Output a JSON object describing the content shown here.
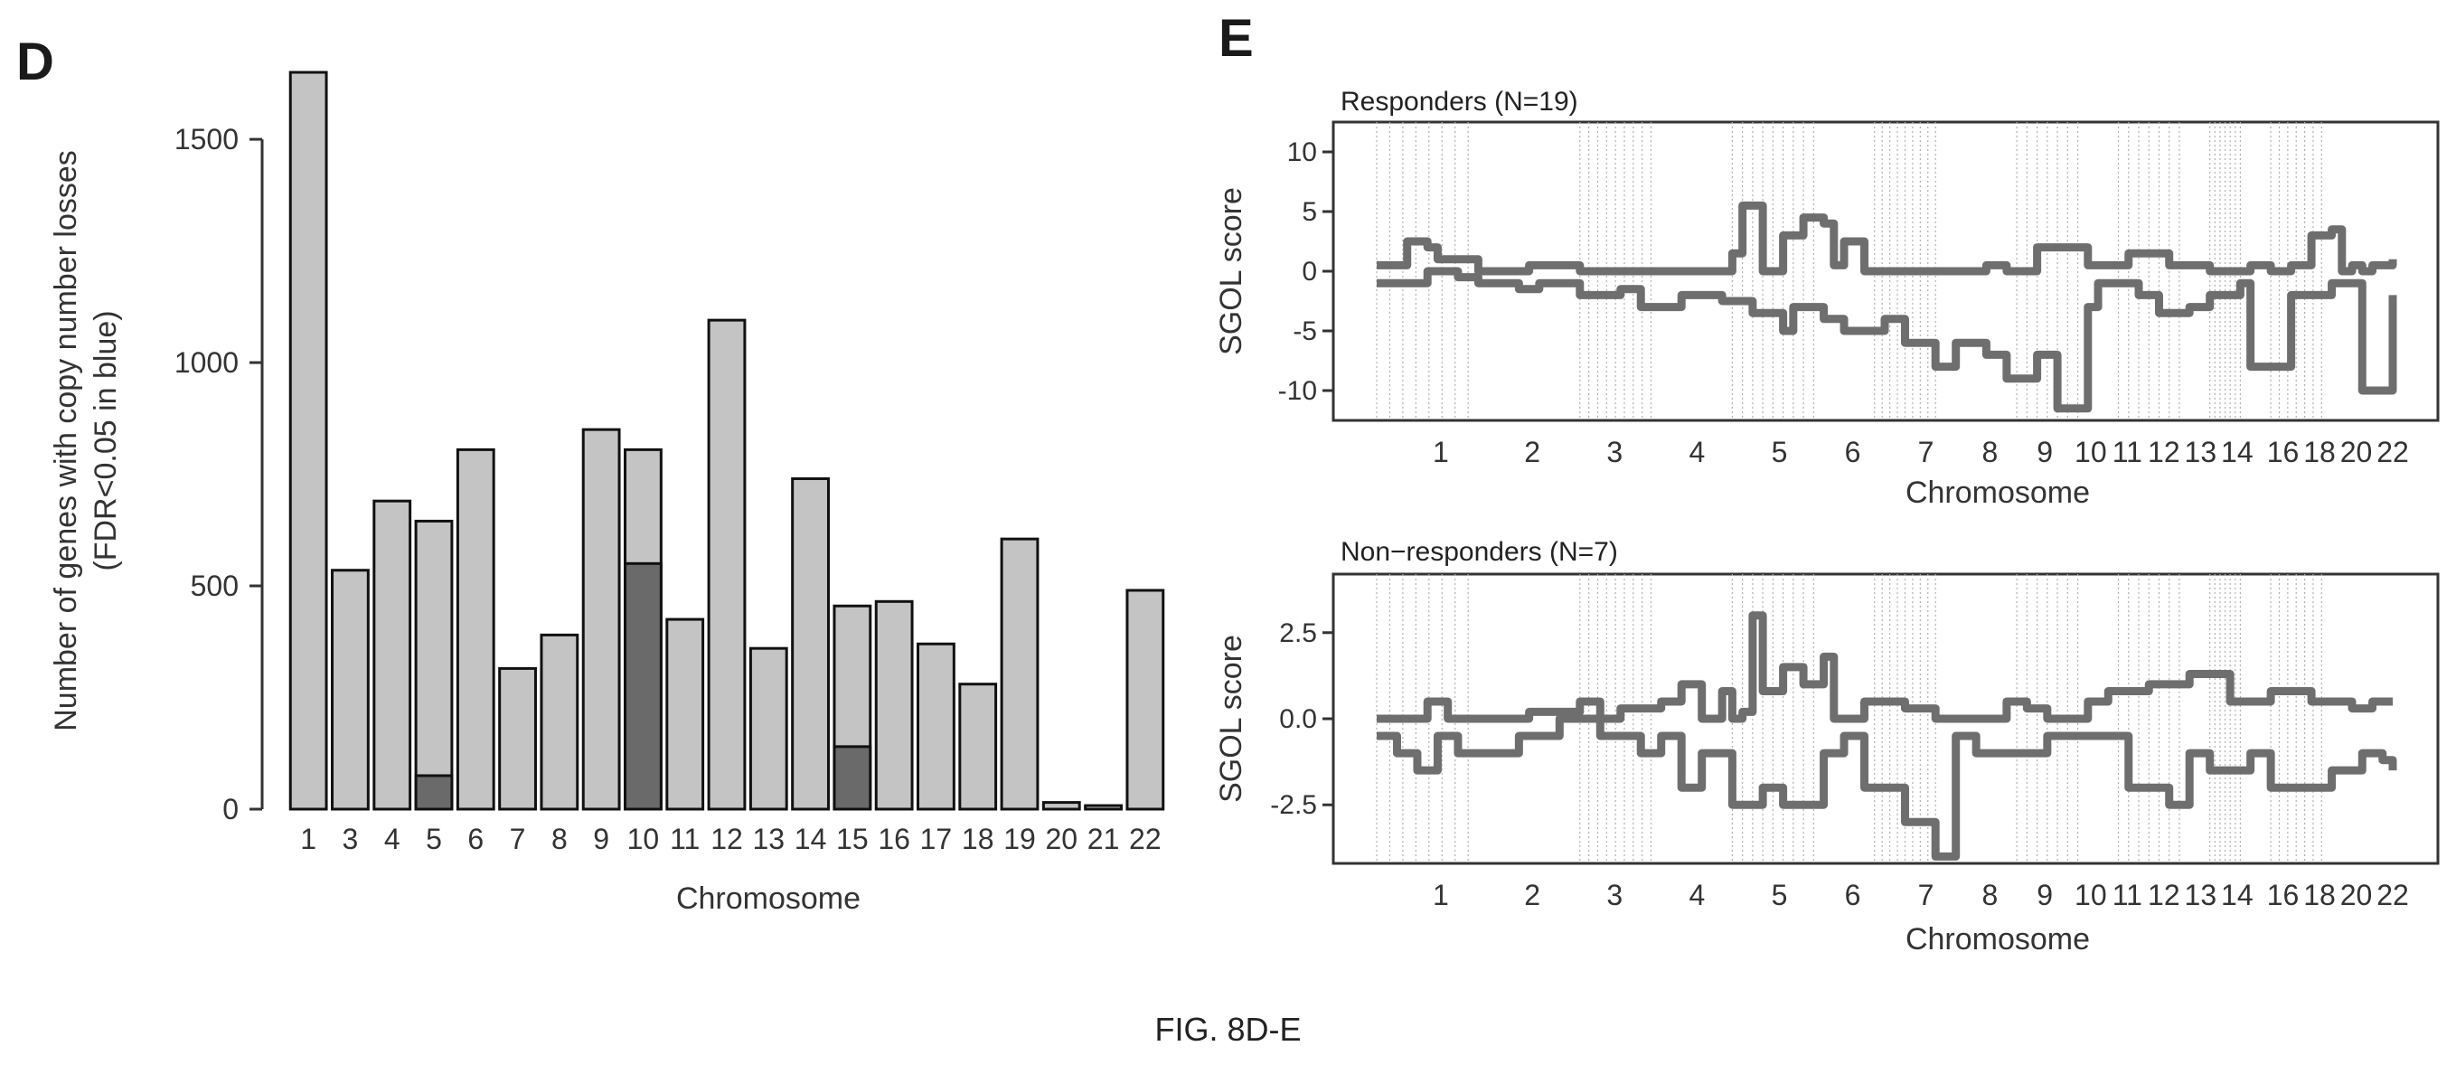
{
  "caption": "FIG. 8D-E",
  "chart_data": [
    {
      "panel": "D",
      "type": "bar",
      "ylabel_line1": "Number of genes with copy number losses",
      "ylabel_line2": "(FDR<0.05 in blue)",
      "xlabel": "Chromosome",
      "ylim": [
        0,
        1650
      ],
      "yticks": [
        0,
        500,
        1000,
        1500
      ],
      "categories": [
        "1",
        "3",
        "4",
        "5",
        "6",
        "7",
        "8",
        "9",
        "10",
        "11",
        "12",
        "13",
        "14",
        "15",
        "16",
        "17",
        "18",
        "19",
        "20",
        "21",
        "22"
      ],
      "series": [
        {
          "values": [
            1650,
            535,
            690,
            645,
            805,
            315,
            390,
            850,
            805,
            425,
            1095,
            360,
            740,
            455,
            465,
            370,
            280,
            605,
            15,
            8,
            490
          ]
        },
        {
          "values": [
            0,
            0,
            0,
            75,
            0,
            0,
            0,
            0,
            550,
            0,
            0,
            0,
            0,
            140,
            0,
            0,
            0,
            0,
            0,
            0,
            0
          ]
        }
      ],
      "colors": [
        "#c4c4c4",
        "#6a6a6a"
      ]
    },
    {
      "panel": "E",
      "type": "line",
      "title": "Responders (N=19)",
      "ylabel": "SGOL score",
      "xlabel": "Chromosome",
      "ylim": [
        -12.5,
        12.5
      ],
      "yticks": [
        -10,
        -5,
        0,
        5,
        10
      ],
      "ytick_labels": [
        "-10",
        "-5",
        "0",
        "5",
        "10"
      ],
      "xticks": [
        "1",
        "2",
        "3",
        "4",
        "5",
        "6",
        "7",
        "8",
        "9",
        "10",
        "11",
        "12",
        "13",
        "14",
        "16",
        "18",
        "20",
        "22"
      ],
      "series": [
        {
          "x": [
            0,
            4,
            5,
            8,
            10,
            14,
            16,
            20,
            24,
            26,
            30,
            34,
            37,
            40,
            41,
            44,
            46,
            50,
            52,
            55,
            57,
            60,
            62,
            65,
            67,
            70,
            71,
            75,
            77,
            80,
            82,
            85,
            86,
            90,
            94,
            97,
            100
          ],
          "y": [
            -1,
            -1,
            0,
            -0.5,
            -1,
            -1.5,
            -1,
            -2,
            -1.5,
            -3,
            -2,
            -2.5,
            -3.5,
            -5,
            -3,
            -4,
            -5,
            -4,
            -6,
            -8,
            -6,
            -7,
            -9,
            -7,
            -11.5,
            -3,
            -1,
            -2,
            -3.5,
            -3,
            -2,
            -1,
            -8,
            -2,
            -1,
            -10,
            -2
          ]
        },
        {
          "x": [
            0,
            2,
            3,
            5,
            6,
            10,
            15,
            20,
            28,
            32,
            34,
            35,
            36,
            38,
            40,
            42,
            44,
            45,
            46,
            48,
            50,
            55,
            60,
            62,
            65,
            70,
            74,
            78,
            82,
            86,
            88,
            90,
            92,
            94,
            95,
            96,
            97,
            98,
            100
          ],
          "y": [
            0.5,
            0.5,
            2.5,
            2,
            1,
            0,
            0.5,
            0,
            0,
            0,
            0,
            1.5,
            5.5,
            0,
            3,
            4.5,
            4,
            0.5,
            2.5,
            0,
            0,
            0,
            0.5,
            0,
            2,
            0.5,
            1.5,
            0.5,
            0,
            0.5,
            0,
            0.5,
            3,
            3.5,
            0,
            0.5,
            0,
            0.5,
            1
          ]
        }
      ],
      "colors": [
        "#6e6e6e",
        "#6e6e6e"
      ]
    },
    {
      "panel": "E",
      "type": "line",
      "title": "Non−responders (N=7)",
      "ylabel": "SGOL score",
      "xlabel": "Chromosome",
      "ylim": [
        -4.2,
        4.2
      ],
      "yticks": [
        -2.5,
        0,
        2.5
      ],
      "ytick_labels": [
        "-2.5",
        "0.0",
        "2.5"
      ],
      "xticks": [
        "1",
        "2",
        "3",
        "4",
        "5",
        "6",
        "7",
        "8",
        "9",
        "10",
        "11",
        "12",
        "13",
        "14",
        "16",
        "18",
        "20",
        "22"
      ],
      "series": [
        {
          "x": [
            0,
            2,
            4,
            6,
            8,
            14,
            18,
            22,
            26,
            28,
            30,
            32,
            35,
            38,
            40,
            44,
            46,
            48,
            52,
            55,
            57,
            59,
            62,
            66,
            70,
            74,
            78,
            80,
            82,
            86,
            88,
            90,
            94,
            97,
            99,
            100
          ],
          "y": [
            -0.5,
            -1,
            -1.5,
            -0.5,
            -1,
            -0.5,
            0,
            -0.5,
            -1,
            -0.5,
            -2,
            -1,
            -2.5,
            -2,
            -2.5,
            -1,
            -0.5,
            -2,
            -3,
            -4,
            -0.5,
            -1,
            -1,
            -0.5,
            -0.5,
            -2,
            -2.5,
            -1,
            -1.5,
            -1,
            -2,
            -2,
            -1.5,
            -1,
            -1.2,
            -1.5
          ]
        },
        {
          "x": [
            0,
            3,
            5,
            7,
            10,
            15,
            20,
            22,
            24,
            28,
            30,
            32,
            34,
            35,
            36,
            37,
            38,
            40,
            42,
            44,
            45,
            48,
            52,
            55,
            58,
            60,
            62,
            64,
            66,
            70,
            72,
            76,
            80,
            84,
            88,
            92,
            96,
            98,
            100
          ],
          "y": [
            0,
            0,
            0.5,
            0,
            0,
            0.2,
            0.5,
            0,
            0.3,
            0.5,
            1,
            0,
            0.8,
            0,
            0.2,
            3,
            0.8,
            1.5,
            1,
            1.8,
            0,
            0.5,
            0.3,
            0,
            0,
            0,
            0.5,
            0.3,
            0,
            0.5,
            0.8,
            1,
            1.3,
            0.5,
            0.8,
            0.5,
            0.3,
            0.5,
            0.5
          ]
        }
      ],
      "colors": [
        "#6e6e6e",
        "#6e6e6e"
      ]
    }
  ],
  "panel_letters": {
    "d": "D",
    "e": "E"
  }
}
